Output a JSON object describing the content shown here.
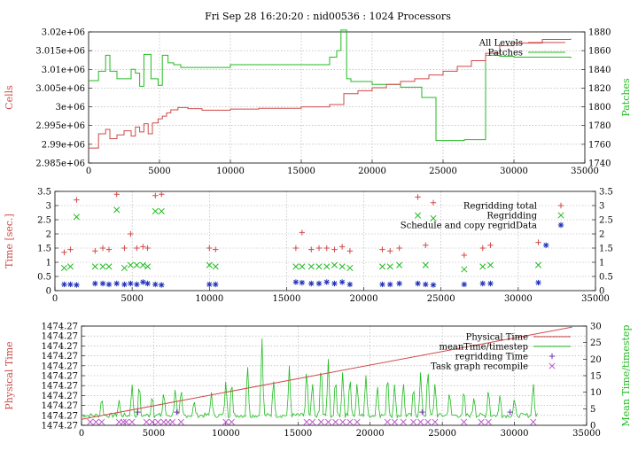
{
  "title": "Fri Sep 28 16:20:20 : nid00536 : 1024 Processors",
  "colors": {
    "red": "#d04a4a",
    "green": "#22bb22",
    "blue": "#2233bb",
    "magenta": "#bb55cc",
    "grid": "#a8a8a8"
  },
  "chart_data": [
    {
      "type": "line",
      "ylabel": "Cells",
      "y2label": "Patches",
      "xlim": [
        0,
        35000
      ],
      "ylim": [
        2985000,
        3020000
      ],
      "y2lim": [
        1740,
        1880
      ],
      "xticks": [
        "0",
        "5000",
        "10000",
        "15000",
        "20000",
        "25000",
        "30000",
        "35000"
      ],
      "yticks": [
        "2.985e+06",
        "2.99e+06",
        "2.995e+06",
        "3e+06",
        "3.005e+06",
        "3.01e+06",
        "3.015e+06",
        "3.02e+06"
      ],
      "y2ticks": [
        "1740",
        "1760",
        "1780",
        "1800",
        "1820",
        "1840",
        "1860",
        "1880"
      ],
      "grid": true,
      "legend_position": "top-right",
      "series": [
        {
          "name": "All Levels",
          "axis": "left",
          "color": "#d04a4a",
          "x": [
            0,
            700,
            1200,
            1500,
            2000,
            2500,
            3000,
            3300,
            3600,
            3900,
            4200,
            4500,
            4900,
            5200,
            5500,
            5800,
            6300,
            7000,
            8000,
            10000,
            12000,
            15000,
            17000,
            18000,
            19000,
            20000,
            21000,
            22000,
            23000,
            24000,
            25000,
            26000,
            27000,
            28000,
            29000,
            30000,
            32000,
            34000
          ],
          "y": [
            2989000,
            2992800,
            2994000,
            2991500,
            2992500,
            2993600,
            2992200,
            2994600,
            2993300,
            2995500,
            2992800,
            2995700,
            2996800,
            2997500,
            2998400,
            2999200,
            2999800,
            2999500,
            2999100,
            2999400,
            2999600,
            3000000,
            3000600,
            3003500,
            3004300,
            3005100,
            3006000,
            3006800,
            3007500,
            3008500,
            3009500,
            3010800,
            3012300,
            3014300,
            3016300,
            3017000,
            3018000,
            3018200
          ]
        },
        {
          "name": "Patches",
          "axis": "right",
          "color": "#22bb22",
          "x": [
            0,
            700,
            1200,
            1500,
            2000,
            3000,
            3300,
            3600,
            3900,
            4400,
            4900,
            5200,
            5600,
            6000,
            6500,
            7000,
            10000,
            15000,
            16000,
            17000,
            17500,
            17800,
            18200,
            18500,
            20000,
            22000,
            23500,
            24500,
            26500,
            28000,
            29000,
            30000,
            32000,
            34000
          ],
          "y": [
            1828,
            1838,
            1855,
            1838,
            1830,
            1840,
            1836,
            1822,
            1856,
            1830,
            1823,
            1855,
            1847,
            1845,
            1842,
            1842,
            1845,
            1845,
            1845,
            1853,
            1860,
            1882,
            1830,
            1827,
            1824,
            1821,
            1810,
            1764,
            1765,
            1855,
            1854,
            1853,
            1853,
            1852
          ]
        }
      ]
    },
    {
      "type": "scatter",
      "ylabel": "Time [sec.]",
      "xlim": [
        0,
        35000
      ],
      "ylim": [
        0,
        3.5
      ],
      "xticks": [
        "0",
        "5000",
        "10000",
        "15000",
        "20000",
        "25000",
        "30000",
        "35000"
      ],
      "yticks": [
        "0",
        "0.5",
        "1",
        "1.5",
        "2",
        "2.5",
        "3",
        "3.5"
      ],
      "y2ticks": [
        "0",
        "0.5",
        "1",
        "1.5",
        "2",
        "2.5",
        "3",
        "3.5"
      ],
      "grid": true,
      "legend_position": "top-right",
      "series": [
        {
          "name": "Regridding total",
          "marker": "plus",
          "color": "#d04a4a",
          "x": [
            600,
            1000,
            1400,
            2600,
            3100,
            3500,
            4000,
            4500,
            4900,
            5300,
            5700,
            6000,
            6500,
            6900,
            10000,
            10400,
            15600,
            16000,
            16600,
            17100,
            17600,
            18100,
            18600,
            19100,
            21200,
            21700,
            22300,
            23500,
            24000,
            24500,
            26500,
            27700,
            28200,
            31300
          ],
          "y": [
            1.35,
            1.45,
            3.2,
            1.4,
            1.5,
            1.45,
            3.4,
            1.5,
            2.0,
            1.5,
            1.55,
            1.5,
            3.35,
            3.4,
            1.5,
            1.45,
            1.5,
            2.05,
            1.45,
            1.5,
            1.5,
            1.45,
            1.55,
            1.4,
            1.45,
            1.4,
            1.5,
            3.3,
            1.6,
            3.1,
            1.25,
            1.5,
            1.6,
            1.7
          ]
        },
        {
          "name": "Regridding",
          "marker": "cross",
          "color": "#22bb22",
          "x": [
            600,
            1000,
            1400,
            2600,
            3100,
            3500,
            4000,
            4500,
            4900,
            5300,
            5700,
            6000,
            6500,
            6900,
            10000,
            10400,
            15600,
            16000,
            16600,
            17100,
            17600,
            18100,
            18600,
            19100,
            21200,
            21700,
            22300,
            23500,
            24000,
            24500,
            26500,
            27700,
            28200,
            31300
          ],
          "y": [
            0.8,
            0.85,
            2.6,
            0.85,
            0.85,
            0.85,
            2.85,
            0.8,
            0.9,
            0.9,
            0.9,
            0.85,
            2.8,
            2.8,
            0.9,
            0.85,
            0.85,
            0.85,
            0.85,
            0.85,
            0.85,
            0.9,
            0.85,
            0.8,
            0.85,
            0.85,
            0.9,
            2.65,
            0.9,
            2.55,
            0.75,
            0.85,
            0.9,
            0.9
          ]
        },
        {
          "name": "Schedule and copy regridData",
          "marker": "star",
          "color": "#2233bb",
          "x": [
            600,
            1000,
            1400,
            2600,
            3100,
            3500,
            4000,
            4500,
            4900,
            5300,
            5700,
            6000,
            6500,
            6900,
            10000,
            10400,
            15600,
            16000,
            16600,
            17100,
            17600,
            18100,
            18600,
            19100,
            21200,
            21700,
            22300,
            23500,
            24000,
            24500,
            26500,
            27700,
            28200,
            31300,
            31800
          ],
          "y": [
            0.22,
            0.22,
            0.2,
            0.25,
            0.25,
            0.22,
            0.25,
            0.22,
            0.25,
            0.22,
            0.3,
            0.25,
            0.22,
            0.2,
            0.22,
            0.22,
            0.3,
            0.28,
            0.25,
            0.25,
            0.3,
            0.25,
            0.3,
            0.22,
            0.22,
            0.22,
            0.25,
            0.25,
            0.22,
            0.2,
            0.22,
            0.25,
            0.25,
            0.28,
            1.6
          ]
        }
      ]
    },
    {
      "type": "line",
      "ylabel": "Physical Time",
      "y2label": "Mean Time/timestep",
      "xlim": [
        0,
        35000
      ],
      "ylim": [
        0,
        10
      ],
      "y2lim": [
        0,
        30
      ],
      "xticks": [
        "0",
        "5000",
        "10000",
        "15000",
        "20000",
        "25000",
        "30000",
        "35000"
      ],
      "yticks": [
        "1474.27",
        "1474.27",
        "1474.27",
        "1474.27",
        "1474.27",
        "1474.27",
        "1474.27",
        "1474.27",
        "1474.27",
        "1474.27",
        "1474.27"
      ],
      "y2ticks": [
        "0",
        "5",
        "10",
        "15",
        "20",
        "25",
        "30"
      ],
      "grid": true,
      "legend_position": "top-right",
      "series": [
        {
          "name": "Physical Time",
          "axis": "left",
          "color": "#d04a4a",
          "x": [
            0,
            34000
          ],
          "y": [
            0.6,
            9.9
          ]
        },
        {
          "name": "meanTime/timestep",
          "axis": "right",
          "color": "#22bb22",
          "baseline": 3,
          "spikes": [
            [
              1400,
              9
            ],
            [
              2600,
              8
            ],
            [
              3500,
              13
            ],
            [
              4000,
              14
            ],
            [
              4900,
              10
            ],
            [
              5700,
              11
            ],
            [
              6500,
              12
            ],
            [
              6900,
              12
            ],
            [
              7800,
              8
            ],
            [
              9000,
              10
            ],
            [
              10000,
              14
            ],
            [
              10400,
              15
            ],
            [
              11500,
              20
            ],
            [
              12500,
              28
            ],
            [
              13300,
              15
            ],
            [
              14400,
              18
            ],
            [
              15600,
              19
            ],
            [
              16000,
              14
            ],
            [
              16600,
              21
            ],
            [
              17100,
              20
            ],
            [
              17600,
              16
            ],
            [
              18100,
              17
            ],
            [
              18600,
              16
            ],
            [
              19100,
              14
            ],
            [
              19700,
              16
            ],
            [
              20500,
              13
            ],
            [
              21200,
              17
            ],
            [
              21700,
              13
            ],
            [
              22300,
              14
            ],
            [
              23000,
              13
            ],
            [
              23500,
              17
            ],
            [
              24000,
              19
            ],
            [
              24500,
              14
            ],
            [
              25500,
              11
            ],
            [
              26500,
              12
            ],
            [
              27200,
              9
            ],
            [
              28200,
              12
            ],
            [
              29000,
              10
            ],
            [
              30000,
              9
            ],
            [
              31300,
              14
            ]
          ]
        },
        {
          "name": "regridding Time",
          "axis": "right",
          "marker": "plus",
          "color": "#7733bb",
          "x": [
            3900,
            6600,
            23600,
            29700
          ],
          "y": [
            4,
            4,
            4,
            4
          ]
        },
        {
          "name": "Task graph recompile",
          "axis": "right",
          "marker": "cross",
          "color": "#bb55cc",
          "x": [
            600,
            1000,
            1400,
            2600,
            2900,
            3100,
            3500,
            4500,
            4900,
            5300,
            5700,
            6000,
            6300,
            6900,
            10000,
            10400,
            15600,
            16000,
            16600,
            17100,
            17600,
            18100,
            18600,
            19100,
            21200,
            21700,
            22300,
            23000,
            23500,
            24000,
            24500,
            26500,
            27700,
            28200,
            31300
          ],
          "y": [
            1,
            1,
            1,
            1,
            1,
            1,
            1,
            1,
            1,
            1,
            1,
            1,
            1,
            1,
            1,
            1,
            1,
            1,
            1,
            1,
            1,
            1,
            1,
            1,
            1,
            1,
            1,
            1,
            1,
            1,
            1,
            1,
            1,
            1,
            1
          ]
        }
      ]
    }
  ]
}
